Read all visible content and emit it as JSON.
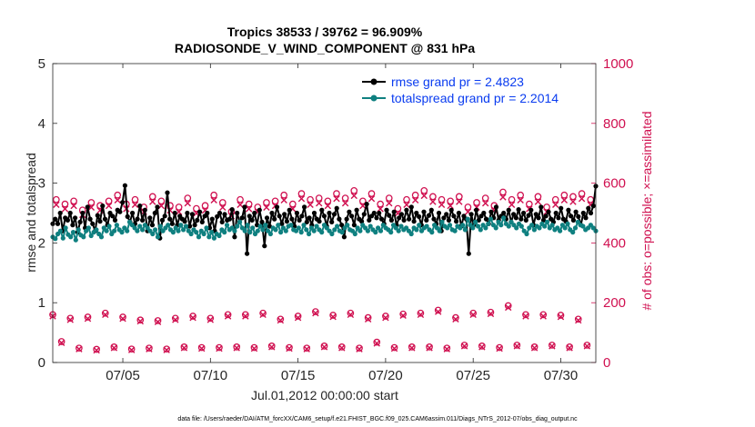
{
  "chart_data": {
    "type": "line",
    "title": "Tropics 38533 / 39762 = 96.909%",
    "subtitle": "RADIOSONDE_V_WIND_COMPONENT @ 831 hPa",
    "xlabel": "Jul.01,2012 00:00:00 start",
    "ylabel": "rmse and totalspread",
    "ylabel_right": "# of obs: o=possible; ×=assimilated",
    "xlim": [
      1.0,
      32.0
    ],
    "ylim": [
      0,
      5
    ],
    "ylim_right": [
      0,
      1000
    ],
    "x_ticks": [
      5,
      10,
      15,
      20,
      25,
      30
    ],
    "x_tick_labels": [
      "07/05",
      "07/10",
      "07/15",
      "07/20",
      "07/25",
      "07/30"
    ],
    "y_ticks": [
      0,
      1,
      2,
      3,
      4,
      5
    ],
    "y_tick_labels": [
      "0",
      "1",
      "2",
      "3",
      "4",
      "5"
    ],
    "y_ticks_right": [
      0,
      200,
      400,
      600,
      800,
      1000
    ],
    "y_tick_labels_right": [
      "0",
      "200",
      "400",
      "600",
      "800",
      "1000"
    ],
    "legend_position": "top-right",
    "series": [
      {
        "name": "rmse grand pr = 2.4823",
        "color": "#000000",
        "marker": "dot",
        "axis": "left",
        "values": [
          2.32,
          2.4,
          2.32,
          2.5,
          2.2,
          2.42,
          2.38,
          2.5,
          2.3,
          2.42,
          2.18,
          2.35,
          2.5,
          2.25,
          2.6,
          2.4,
          2.32,
          2.2,
          2.46,
          2.36,
          2.62,
          2.4,
          2.3,
          2.5,
          2.45,
          2.38,
          2.55,
          2.52,
          2.68,
          2.96,
          2.44,
          2.35,
          2.5,
          2.32,
          2.4,
          2.62,
          2.38,
          2.55,
          2.2,
          2.42,
          2.3,
          2.5,
          2.6,
          2.08,
          2.38,
          2.45,
          2.84,
          2.4,
          2.32,
          2.5,
          2.3,
          2.45,
          2.4,
          2.36,
          2.5,
          2.28,
          2.48,
          2.3,
          2.38,
          2.52,
          2.35,
          2.45,
          2.5,
          2.25,
          2.4,
          2.2,
          2.44,
          2.5,
          2.35,
          2.48,
          2.38,
          2.4,
          2.56,
          2.1,
          2.5,
          2.35,
          2.42,
          2.6,
          1.82,
          2.45,
          2.38,
          2.5,
          2.3,
          2.55,
          2.35,
          1.95,
          2.42,
          2.28,
          2.5,
          2.4,
          2.6,
          2.45,
          2.32,
          2.48,
          2.36,
          2.55,
          2.4,
          2.28,
          2.5,
          2.38,
          2.45,
          2.6,
          2.35,
          2.42,
          2.3,
          2.5,
          2.4,
          2.36,
          2.55,
          2.45,
          2.28,
          2.5,
          2.35,
          2.48,
          2.58,
          2.4,
          2.3,
          2.1,
          2.4,
          2.52,
          2.45,
          2.3,
          2.55,
          2.4,
          2.36,
          2.48,
          2.65,
          2.38,
          2.45,
          2.5,
          2.42,
          2.5,
          2.4,
          2.32,
          2.55,
          2.46,
          2.38,
          2.52,
          2.3,
          2.42,
          2.48,
          2.38,
          2.55,
          2.4,
          2.6,
          2.36,
          2.5,
          2.44,
          2.3,
          2.52,
          2.38,
          2.46,
          2.55,
          2.4,
          2.32,
          2.5,
          2.2,
          2.42,
          2.48,
          2.38,
          2.55,
          2.45,
          2.36,
          2.5,
          2.28,
          2.45,
          2.4,
          1.82,
          2.48,
          2.3,
          2.55,
          2.38,
          2.45,
          2.5,
          2.4,
          2.32,
          2.52,
          2.42,
          2.6,
          2.38,
          2.45,
          2.5,
          2.4,
          2.55,
          2.35,
          2.48,
          2.42,
          2.56,
          2.4,
          2.5,
          2.38,
          2.46,
          2.55,
          2.3,
          2.48,
          2.42,
          2.6,
          2.38,
          2.45,
          2.52,
          2.4,
          2.35,
          2.5,
          2.42,
          2.58,
          2.4,
          2.36,
          2.55,
          2.45,
          2.38,
          2.52,
          2.44,
          2.3,
          2.5,
          2.42,
          2.58,
          2.5,
          2.62,
          2.95
        ]
      },
      {
        "name": "totalspread grand pr = 2.2014",
        "color": "#0f8080",
        "marker": "dot",
        "axis": "left",
        "values": [
          2.1,
          2.07,
          2.15,
          2.2,
          2.08,
          2.25,
          2.14,
          2.1,
          2.18,
          2.05,
          2.22,
          2.13,
          2.1,
          2.2,
          2.25,
          2.12,
          2.18,
          2.22,
          2.15,
          2.1,
          2.25,
          2.2,
          2.28,
          2.15,
          2.2,
          2.3,
          2.22,
          2.18,
          2.25,
          2.2,
          2.35,
          2.3,
          2.25,
          2.2,
          2.28,
          2.22,
          2.3,
          2.25,
          2.2,
          2.15,
          2.22,
          2.1,
          2.28,
          2.2,
          2.25,
          2.3,
          2.22,
          2.18,
          2.25,
          2.2,
          2.3,
          2.22,
          2.28,
          2.2,
          2.15,
          2.22,
          2.18,
          2.1,
          2.2,
          2.15,
          2.25,
          2.1,
          2.18,
          2.08,
          2.15,
          2.12,
          2.22,
          2.18,
          2.3,
          2.22,
          2.25,
          2.2,
          2.28,
          2.35,
          2.25,
          2.2,
          2.3,
          2.18,
          2.25,
          2.15,
          2.2,
          2.28,
          2.22,
          2.3,
          2.2,
          2.15,
          2.25,
          2.22,
          2.3,
          2.18,
          2.25,
          2.2,
          2.28,
          2.3,
          2.22,
          2.2,
          2.25,
          2.18,
          2.3,
          2.22,
          2.15,
          2.25,
          2.2,
          2.28,
          2.22,
          2.18,
          2.3,
          2.25,
          2.2,
          2.15,
          2.22,
          2.28,
          2.2,
          2.18,
          2.25,
          2.3,
          2.22,
          2.2,
          2.15,
          2.25,
          2.2,
          2.3,
          2.25,
          2.2,
          2.28,
          2.22,
          2.18,
          2.25,
          2.2,
          2.3,
          2.25,
          2.22,
          2.18,
          2.3,
          2.25,
          2.2,
          2.28,
          2.22,
          2.25,
          2.2,
          2.15,
          2.25,
          2.22,
          2.3,
          2.2,
          2.25,
          2.28,
          2.22,
          2.18,
          2.3,
          2.25,
          2.2,
          2.35,
          2.28,
          2.25,
          2.3,
          2.22,
          2.2,
          2.28,
          2.25,
          2.3,
          2.22,
          2.4,
          2.3,
          2.25,
          2.35,
          2.28,
          2.22,
          2.3,
          2.25,
          2.32,
          2.4,
          2.3,
          2.25,
          2.35,
          2.3,
          2.42,
          2.32,
          2.28,
          2.35,
          2.3,
          2.25,
          2.32,
          2.28,
          2.2,
          2.15,
          2.25,
          2.3,
          2.22,
          2.28,
          2.25,
          2.32,
          2.28,
          2.35,
          2.25,
          2.3,
          2.22,
          2.25,
          2.2,
          2.3,
          2.25,
          2.32,
          2.22,
          2.18,
          2.25,
          2.35,
          2.3,
          2.28,
          2.22,
          2.25,
          2.3,
          2.25,
          2.2
        ]
      }
    ],
    "obs_series": [
      {
        "name": "possible",
        "marker": "o",
        "color": "#d01050",
        "axis": "right",
        "x": [
          1.0,
          1.5,
          2.0,
          2.5,
          3.0,
          3.5,
          4.0,
          4.5,
          5.0,
          5.5,
          6.0,
          6.5,
          7.0,
          7.5,
          8.0,
          8.5,
          9.0,
          9.5,
          10.0,
          10.5,
          11.0,
          11.5,
          12.0,
          12.5,
          13.0,
          13.5,
          14.0,
          14.5,
          15.0,
          15.5,
          16.0,
          16.5,
          17.0,
          17.5,
          18.0,
          18.5,
          19.0,
          19.5,
          20.0,
          20.5,
          21.0,
          21.5,
          22.0,
          22.5,
          23.0,
          23.5,
          24.0,
          24.5,
          25.0,
          25.5,
          26.0,
          26.5,
          27.0,
          27.5,
          28.0,
          28.5,
          29.0,
          29.5,
          30.0,
          30.5,
          31.0,
          31.5
        ],
        "values": [
          160,
          70,
          148,
          48,
          152,
          44,
          165,
          52,
          152,
          45,
          142,
          48,
          140,
          45,
          148,
          52,
          155,
          50,
          148,
          50,
          160,
          52,
          160,
          50,
          165,
          55,
          145,
          50,
          155,
          48,
          170,
          55,
          158,
          52,
          165,
          48,
          150,
          68,
          155,
          50,
          162,
          52,
          165,
          52,
          175,
          48,
          150,
          58,
          165,
          55,
          168,
          50,
          190,
          58,
          160,
          52,
          160,
          58,
          158,
          52,
          145,
          58
        ]
      },
      {
        "name": "assimilated",
        "marker": "x",
        "color": "#d01050",
        "axis": "right",
        "x": [
          1.0,
          1.5,
          2.0,
          2.5,
          3.0,
          3.5,
          4.0,
          4.5,
          5.0,
          5.5,
          6.0,
          6.5,
          7.0,
          7.5,
          8.0,
          8.5,
          9.0,
          9.5,
          10.0,
          10.5,
          11.0,
          11.5,
          12.0,
          12.5,
          13.0,
          13.5,
          14.0,
          14.5,
          15.0,
          15.5,
          16.0,
          16.5,
          17.0,
          17.5,
          18.0,
          18.5,
          19.0,
          19.5,
          20.0,
          20.5,
          21.0,
          21.5,
          22.0,
          22.5,
          23.0,
          23.5,
          24.0,
          24.5,
          25.0,
          25.5,
          26.0,
          26.5,
          27.0,
          27.5,
          28.0,
          28.5,
          29.0,
          29.5,
          30.0,
          30.5,
          31.0,
          31.5
        ],
        "values": [
          155,
          66,
          143,
          45,
          147,
          41,
          160,
          49,
          147,
          42,
          138,
          45,
          136,
          42,
          143,
          49,
          150,
          47,
          143,
          47,
          155,
          49,
          155,
          47,
          160,
          52,
          141,
          47,
          150,
          45,
          165,
          52,
          153,
          49,
          160,
          45,
          145,
          64,
          150,
          47,
          157,
          49,
          160,
          49,
          170,
          45,
          145,
          55,
          160,
          52,
          163,
          47,
          184,
          55,
          155,
          49,
          155,
          55,
          153,
          49,
          141,
          55
        ]
      },
      {
        "name": "possible (upper band)",
        "marker": "o",
        "color": "#d01050",
        "axis": "right",
        "x": [
          1.2,
          1.7,
          2.2,
          2.7,
          3.2,
          3.7,
          4.2,
          4.7,
          5.2,
          5.7,
          6.2,
          6.7,
          7.2,
          7.7,
          8.2,
          8.7,
          9.2,
          9.7,
          10.2,
          10.7,
          11.2,
          11.7,
          12.2,
          12.7,
          13.2,
          13.7,
          14.2,
          14.7,
          15.2,
          15.7,
          16.2,
          16.7,
          17.2,
          17.7,
          18.2,
          18.7,
          19.2,
          19.7,
          20.2,
          20.7,
          21.2,
          21.7,
          22.2,
          22.7,
          23.2,
          23.7,
          24.2,
          24.7,
          25.2,
          25.7,
          26.2,
          26.7,
          27.2,
          27.7,
          28.2,
          28.7,
          29.2,
          29.7,
          30.2,
          30.7,
          31.2,
          31.7
        ],
        "values": [
          545,
          530,
          540,
          510,
          535,
          525,
          540,
          560,
          530,
          545,
          520,
          555,
          540,
          525,
          520,
          550,
          515,
          525,
          560,
          535,
          505,
          545,
          530,
          520,
          535,
          540,
          560,
          530,
          565,
          545,
          550,
          540,
          565,
          550,
          575,
          540,
          565,
          530,
          550,
          515,
          545,
          560,
          575,
          555,
          545,
          540,
          555,
          520,
          535,
          550,
          525,
          570,
          545,
          560,
          530,
          555,
          520,
          545,
          560,
          555,
          565,
          545
        ]
      },
      {
        "name": "assimilated (upper band)",
        "marker": "x",
        "color": "#d01050",
        "axis": "right",
        "x": [
          1.2,
          1.7,
          2.2,
          2.7,
          3.2,
          3.7,
          4.2,
          4.7,
          5.2,
          5.7,
          6.2,
          6.7,
          7.2,
          7.7,
          8.2,
          8.7,
          9.2,
          9.7,
          10.2,
          10.7,
          11.2,
          11.7,
          12.2,
          12.7,
          13.2,
          13.7,
          14.2,
          14.7,
          15.2,
          15.7,
          16.2,
          16.7,
          17.2,
          17.7,
          18.2,
          18.7,
          19.2,
          19.7,
          20.2,
          20.7,
          21.2,
          21.7,
          22.2,
          22.7,
          23.2,
          23.7,
          24.2,
          24.7,
          25.2,
          25.7,
          26.2,
          26.7,
          27.2,
          27.7,
          28.2,
          28.7,
          29.2,
          29.7,
          30.2,
          30.7,
          31.2,
          31.7
        ],
        "values": [
          528,
          514,
          524,
          494,
          519,
          509,
          524,
          543,
          514,
          528,
          504,
          538,
          524,
          509,
          504,
          533,
          499,
          509,
          543,
          519,
          490,
          528,
          514,
          504,
          519,
          524,
          543,
          514,
          548,
          528,
          533,
          524,
          548,
          533,
          558,
          524,
          548,
          514,
          533,
          499,
          528,
          543,
          558,
          538,
          528,
          524,
          538,
          504,
          519,
          533,
          509,
          553,
          528,
          543,
          514,
          538,
          504,
          528,
          543,
          538,
          548,
          528
        ]
      }
    ],
    "footnote": "data file: /Users/raeder/DAI/ATM_forcXX/CAM6_setup/f.e21.FHIST_BGC.f09_025.CAM6assim.011/Diags_NTrS_2012-07/obs_diag_output.nc"
  }
}
